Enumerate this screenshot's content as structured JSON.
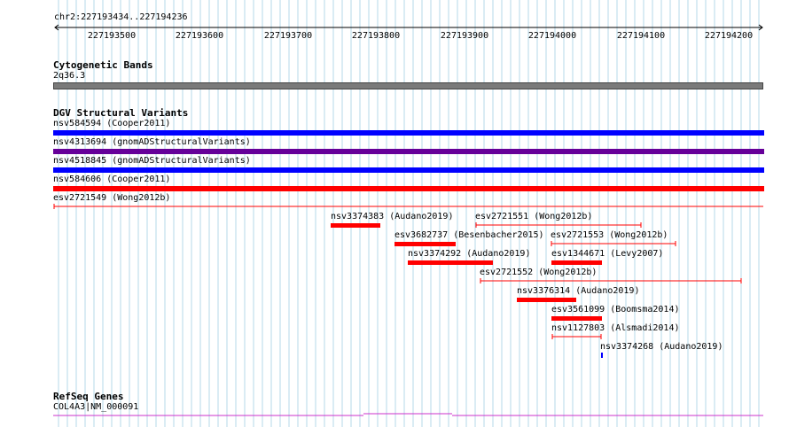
{
  "ruler": {
    "region": "chr2:227193434..227194236",
    "ticks": [
      "227193500",
      "227193600",
      "227193700",
      "227193800",
      "227193900",
      "227194000",
      "227194100",
      "227194200"
    ]
  },
  "cyto": {
    "title": "Cytogenetic Bands",
    "band": "2q36.3",
    "band_color": "#7a7a7a"
  },
  "dgv": {
    "title": "DGV Structural Variants",
    "wide": [
      {
        "label": "nsv584594 (Cooper2011)",
        "color": "#0000ff"
      },
      {
        "label": "nsv4313694 (gnomADStructuralVariants)",
        "color": "#660099"
      },
      {
        "label": "nsv4518845 (gnomADStructuralVariants)",
        "color": "#0000ff"
      },
      {
        "label": "nsv584606 (Cooper2011)",
        "color": "#ff0000"
      },
      {
        "label": "esv2721549 (Wong2012b)",
        "color": "#ff0000"
      }
    ],
    "features": [
      {
        "label": "nsv3374383 (Audano2019)",
        "color": "#ff0000"
      },
      {
        "label": "esv2721551 (Wong2012b)",
        "color": "#ff0000"
      },
      {
        "label": "esv3682737 (Besenbacher2015)",
        "color": "#ff0000"
      },
      {
        "label": "esv2721553 (Wong2012b)",
        "color": "#ff0000"
      },
      {
        "label": "nsv3374292 (Audano2019)",
        "color": "#ff0000"
      },
      {
        "label": "esv1344671 (Levy2007)",
        "color": "#ff0000"
      },
      {
        "label": "esv2721552 (Wong2012b)",
        "color": "#ff0000"
      },
      {
        "label": "nsv3376314 (Audano2019)",
        "color": "#ff0000"
      },
      {
        "label": "esv3561099 (Boomsma2014)",
        "color": "#ff0000"
      },
      {
        "label": "nsv1127803 (Alsmadi2014)",
        "color": "#ff0000"
      },
      {
        "label": "nsv3374268 (Audano2019)",
        "color": "#0000ff"
      }
    ]
  },
  "refseq": {
    "title": "RefSeq Genes",
    "gene": "COL4A3|NM_000091",
    "color": "#cc33cc"
  },
  "colors": {
    "grid_line": "#b6d8ea",
    "ruler": "#000000"
  }
}
